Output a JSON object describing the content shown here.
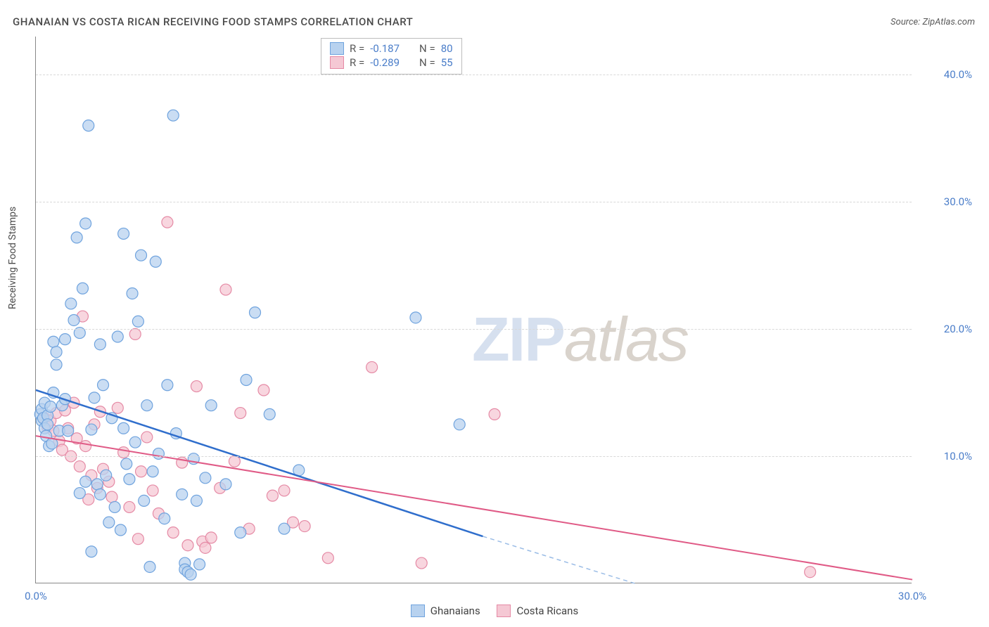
{
  "title": "GHANAIAN VS COSTA RICAN RECEIVING FOOD STAMPS CORRELATION CHART",
  "source_label": "Source:",
  "source_value": "ZipAtlas.com",
  "ylabel": "Receiving Food Stamps",
  "watermark_zip": "ZIP",
  "watermark_atlas": "atlas",
  "chart": {
    "type": "scatter",
    "xlim": [
      0,
      30
    ],
    "ylim": [
      0,
      43
    ],
    "xticks": [
      0,
      30
    ],
    "xtick_labels": [
      "0.0%",
      "30.0%"
    ],
    "yticks": [
      10,
      20,
      30,
      40
    ],
    "ytick_labels": [
      "10.0%",
      "20.0%",
      "30.0%",
      "40.0%"
    ],
    "grid_color": "#d8d8d8",
    "background_color": "#ffffff",
    "axis_color": "#888888"
  },
  "series": {
    "ghanaians": {
      "label": "Ghanaians",
      "marker_fill": "#b8d2ef",
      "marker_stroke": "#6fa3de",
      "marker_radius": 8,
      "line_color": "#2f6ecc",
      "line_width": 2.5,
      "line_dash_ext_color": "#9abce6",
      "r_value": "-0.187",
      "n_value": "80",
      "trend": {
        "x1": 0,
        "y1": 15.2,
        "x2": 15.3,
        "y2": 3.7,
        "x2_ext": 20.5,
        "y2_ext": 0
      },
      "points": [
        [
          0.15,
          13.3
        ],
        [
          0.2,
          13.7
        ],
        [
          0.2,
          12.8
        ],
        [
          0.25,
          13.0
        ],
        [
          0.3,
          14.2
        ],
        [
          0.3,
          12.2
        ],
        [
          0.35,
          11.6
        ],
        [
          0.4,
          13.2
        ],
        [
          0.4,
          12.5
        ],
        [
          0.45,
          10.8
        ],
        [
          0.5,
          13.9
        ],
        [
          0.55,
          11.0
        ],
        [
          0.6,
          19.0
        ],
        [
          0.6,
          15.0
        ],
        [
          0.7,
          18.2
        ],
        [
          0.7,
          17.2
        ],
        [
          0.8,
          12.0
        ],
        [
          0.9,
          14.0
        ],
        [
          1.0,
          14.5
        ],
        [
          1.0,
          19.2
        ],
        [
          1.1,
          12.0
        ],
        [
          1.2,
          22.0
        ],
        [
          1.3,
          20.7
        ],
        [
          1.4,
          27.2
        ],
        [
          1.5,
          7.1
        ],
        [
          1.5,
          19.7
        ],
        [
          1.6,
          23.2
        ],
        [
          1.7,
          8.0
        ],
        [
          1.7,
          28.3
        ],
        [
          1.8,
          36.0
        ],
        [
          1.9,
          2.5
        ],
        [
          1.9,
          12.1
        ],
        [
          2.0,
          14.6
        ],
        [
          2.1,
          7.8
        ],
        [
          2.2,
          18.8
        ],
        [
          2.2,
          7.0
        ],
        [
          2.3,
          15.6
        ],
        [
          2.4,
          8.5
        ],
        [
          2.5,
          4.8
        ],
        [
          2.6,
          13.0
        ],
        [
          2.7,
          6.0
        ],
        [
          2.8,
          19.4
        ],
        [
          2.9,
          4.2
        ],
        [
          3.0,
          12.2
        ],
        [
          3.0,
          27.5
        ],
        [
          3.1,
          9.4
        ],
        [
          3.2,
          8.2
        ],
        [
          3.3,
          22.8
        ],
        [
          3.4,
          11.1
        ],
        [
          3.5,
          20.6
        ],
        [
          3.6,
          25.8
        ],
        [
          3.7,
          6.5
        ],
        [
          3.8,
          14.0
        ],
        [
          3.9,
          1.3
        ],
        [
          4.0,
          8.8
        ],
        [
          4.1,
          25.3
        ],
        [
          4.2,
          10.2
        ],
        [
          4.4,
          5.1
        ],
        [
          4.5,
          15.6
        ],
        [
          4.7,
          36.8
        ],
        [
          4.8,
          11.8
        ],
        [
          5.0,
          7.0
        ],
        [
          5.1,
          1.6
        ],
        [
          5.1,
          1.1
        ],
        [
          5.2,
          0.9
        ],
        [
          5.3,
          0.7
        ],
        [
          5.4,
          9.8
        ],
        [
          5.5,
          6.5
        ],
        [
          5.6,
          1.5
        ],
        [
          5.8,
          8.3
        ],
        [
          6.0,
          14.0
        ],
        [
          6.5,
          7.8
        ],
        [
          7.0,
          4.0
        ],
        [
          7.2,
          16.0
        ],
        [
          7.5,
          21.3
        ],
        [
          8.0,
          13.3
        ],
        [
          8.5,
          4.3
        ],
        [
          9.0,
          8.9
        ],
        [
          13.0,
          20.9
        ],
        [
          14.5,
          12.5
        ]
      ]
    },
    "costa_ricans": {
      "label": "Costa Ricans",
      "marker_fill": "#f5c8d4",
      "marker_stroke": "#e58aa5",
      "marker_radius": 8,
      "line_color": "#e05a86",
      "line_width": 2,
      "r_value": "-0.289",
      "n_value": "55",
      "trend": {
        "x1": 0,
        "y1": 11.6,
        "x2": 30,
        "y2": 0.3
      },
      "points": [
        [
          0.3,
          13.0
        ],
        [
          0.4,
          12.3
        ],
        [
          0.5,
          12.8
        ],
        [
          0.6,
          12.0
        ],
        [
          0.7,
          13.4
        ],
        [
          0.8,
          11.2
        ],
        [
          0.9,
          10.5
        ],
        [
          1.0,
          13.6
        ],
        [
          1.1,
          12.2
        ],
        [
          1.2,
          10.0
        ],
        [
          1.3,
          14.2
        ],
        [
          1.4,
          11.4
        ],
        [
          1.5,
          9.2
        ],
        [
          1.6,
          21.0
        ],
        [
          1.7,
          10.8
        ],
        [
          1.8,
          6.6
        ],
        [
          1.9,
          8.5
        ],
        [
          2.0,
          12.5
        ],
        [
          2.1,
          7.5
        ],
        [
          2.2,
          13.5
        ],
        [
          2.3,
          9.0
        ],
        [
          2.5,
          8.0
        ],
        [
          2.6,
          6.8
        ],
        [
          2.8,
          13.8
        ],
        [
          3.0,
          10.3
        ],
        [
          3.2,
          6.0
        ],
        [
          3.4,
          19.6
        ],
        [
          3.5,
          3.5
        ],
        [
          3.6,
          8.8
        ],
        [
          3.8,
          11.5
        ],
        [
          4.0,
          7.3
        ],
        [
          4.2,
          5.5
        ],
        [
          4.5,
          28.4
        ],
        [
          4.7,
          4.0
        ],
        [
          5.0,
          9.5
        ],
        [
          5.2,
          3.0
        ],
        [
          5.5,
          15.5
        ],
        [
          5.7,
          3.3
        ],
        [
          5.8,
          2.8
        ],
        [
          6.0,
          3.6
        ],
        [
          6.3,
          7.5
        ],
        [
          6.5,
          23.1
        ],
        [
          6.8,
          9.6
        ],
        [
          7.0,
          13.4
        ],
        [
          7.3,
          4.3
        ],
        [
          7.8,
          15.2
        ],
        [
          8.1,
          6.9
        ],
        [
          8.5,
          7.3
        ],
        [
          8.8,
          4.8
        ],
        [
          9.2,
          4.5
        ],
        [
          10.0,
          2.0
        ],
        [
          11.5,
          17.0
        ],
        [
          13.2,
          1.6
        ],
        [
          15.7,
          13.3
        ],
        [
          26.5,
          0.9
        ]
      ]
    }
  },
  "stats_box": {
    "r_label": "R  =",
    "n_label": "N  ="
  },
  "bottom_legend": {
    "items": [
      "ghanaians",
      "costa_ricans"
    ]
  }
}
